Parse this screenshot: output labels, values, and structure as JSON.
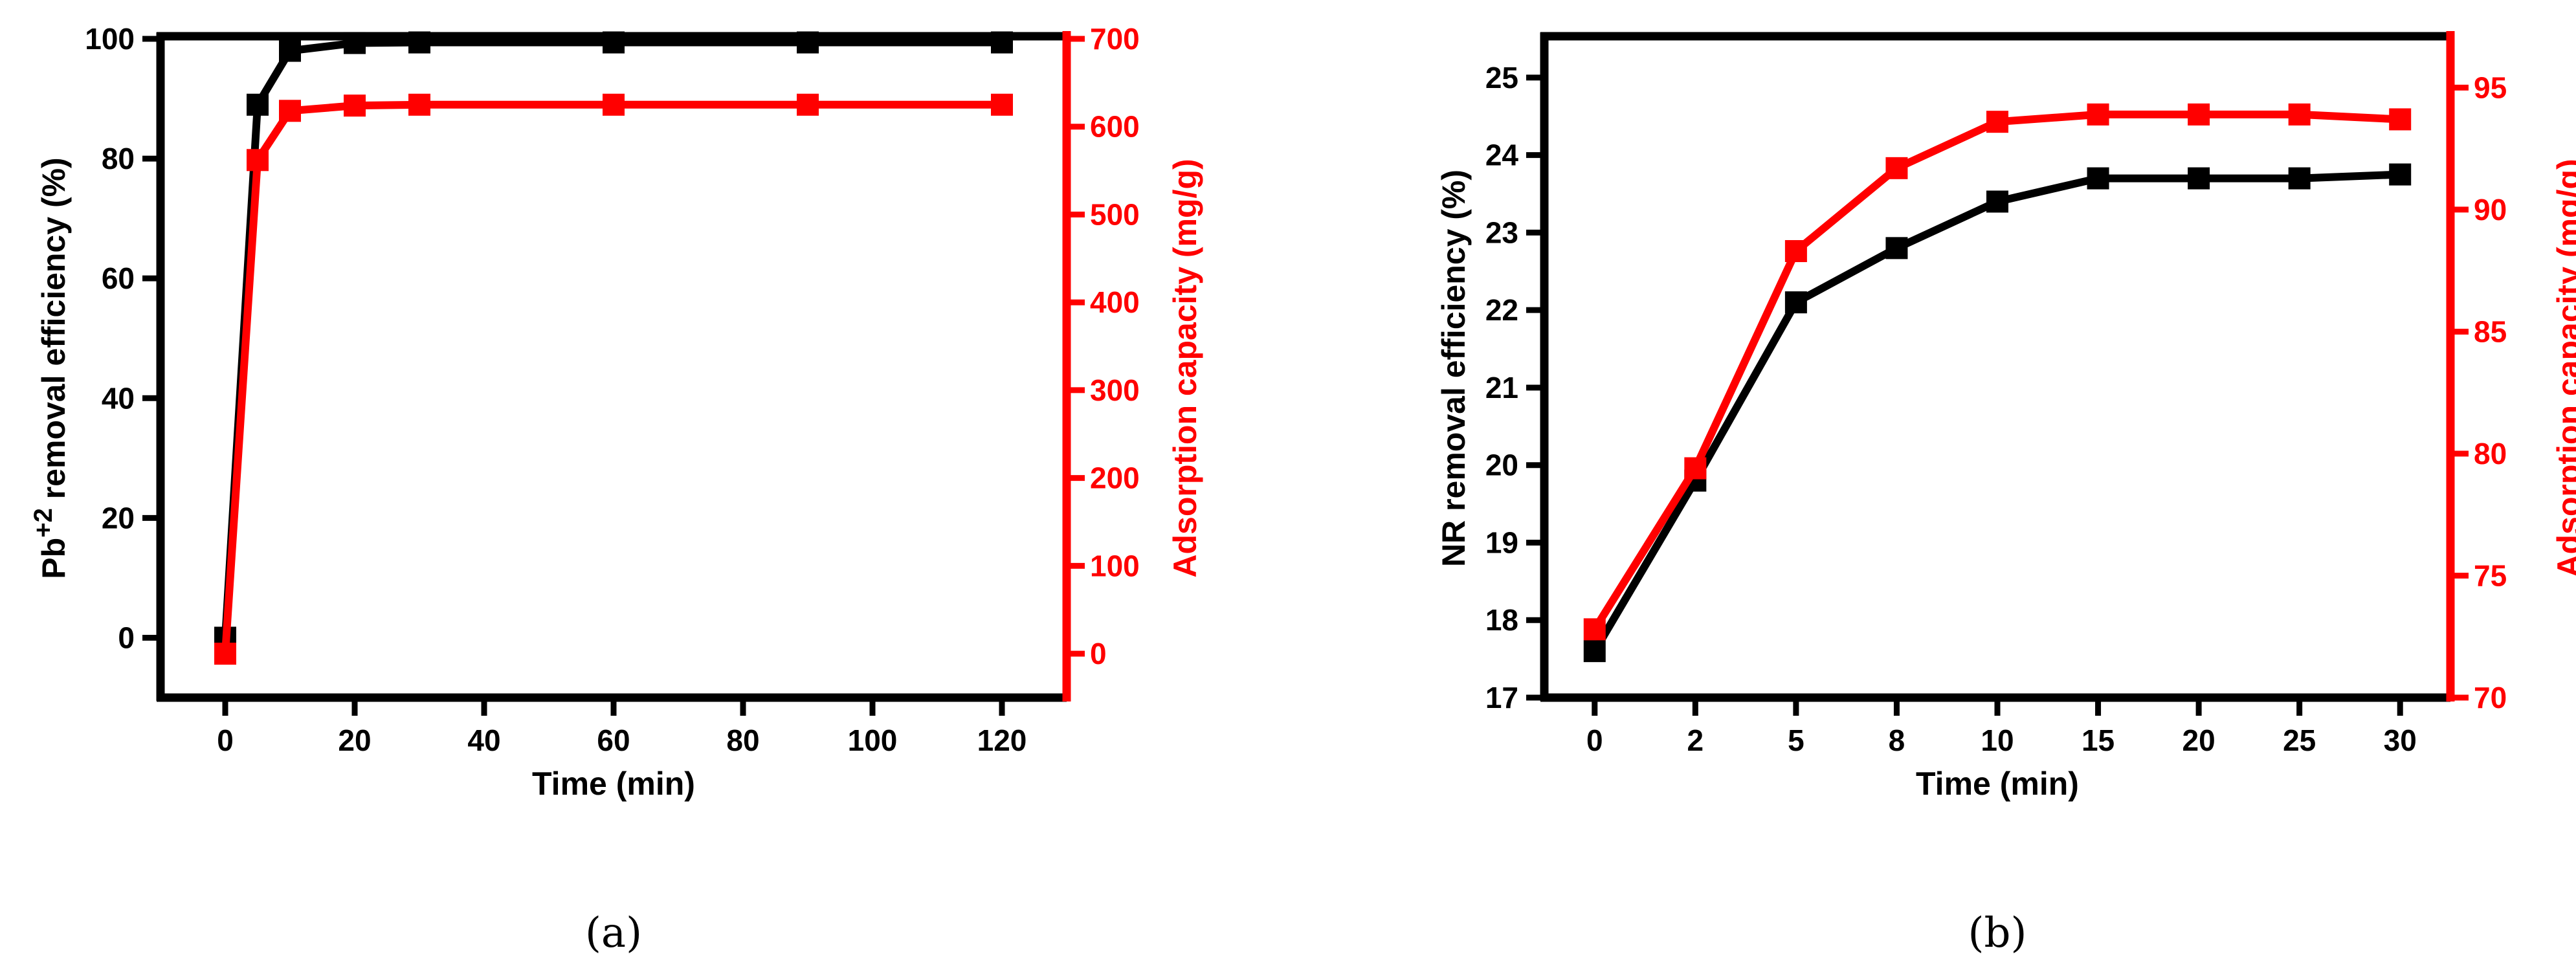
{
  "chart_data": [
    {
      "panel_label": "(a)",
      "type": "line",
      "xlabel": "Time (min)",
      "ylabel_main": "Pb",
      "ylabel_sup": "+2",
      "ylabel_rest": " removal efficiency (%)",
      "ylabel_right": "Adsorption capacity (mg/g)",
      "xlim": [
        -10,
        130
      ],
      "ylim_left": [
        -10,
        100
      ],
      "ylim_right": [
        -50,
        700
      ],
      "xticks": [
        0,
        20,
        40,
        60,
        80,
        100,
        120
      ],
      "yticks_left": [
        0,
        20,
        40,
        60,
        80,
        100
      ],
      "yticks_right": [
        0,
        100,
        200,
        300,
        400,
        500,
        600,
        700
      ],
      "series": [
        {
          "name": "Pb+2 removal efficiency",
          "axis": "left",
          "color": "#000000",
          "x": [
            0,
            5,
            10,
            20,
            30,
            60,
            90,
            120
          ],
          "y": [
            0,
            89,
            98,
            99.3,
            99.4,
            99.4,
            99.4,
            99.4
          ]
        },
        {
          "name": "Adsorption capacity",
          "axis": "right",
          "color": "#ff0000",
          "x": [
            0,
            5,
            10,
            20,
            30,
            60,
            90,
            120
          ],
          "y": [
            0,
            562,
            618,
            624,
            625,
            625,
            625,
            625
          ]
        }
      ]
    },
    {
      "panel_label": "(b)",
      "type": "line",
      "xlabel": "Time (min)",
      "ylabel_main": "NR removal efficiency (%)",
      "ylabel_sup": "",
      "ylabel_rest": "",
      "ylabel_right": "Adsorption capacity (mg/g)",
      "categories": [
        "0",
        "2",
        "5",
        "8",
        "10",
        "15",
        "20",
        "25",
        "30"
      ],
      "ylim_left": [
        17,
        25.5
      ],
      "ylim_right": [
        70,
        97
      ],
      "yticks_left": [
        17,
        18,
        19,
        20,
        21,
        22,
        23,
        24,
        25
      ],
      "yticks_right": [
        70,
        75,
        80,
        85,
        90,
        95
      ],
      "series": [
        {
          "name": "NR removal efficiency",
          "axis": "left",
          "color": "#000000",
          "values": [
            17.6,
            19.8,
            22.1,
            22.8,
            23.4,
            23.7,
            23.7,
            23.7,
            23.75
          ]
        },
        {
          "name": "Adsorption capacity",
          "axis": "right",
          "color": "#ff0000",
          "values": [
            72.8,
            79.4,
            88.3,
            91.7,
            93.6,
            93.9,
            93.9,
            93.9,
            93.7
          ]
        }
      ]
    }
  ]
}
